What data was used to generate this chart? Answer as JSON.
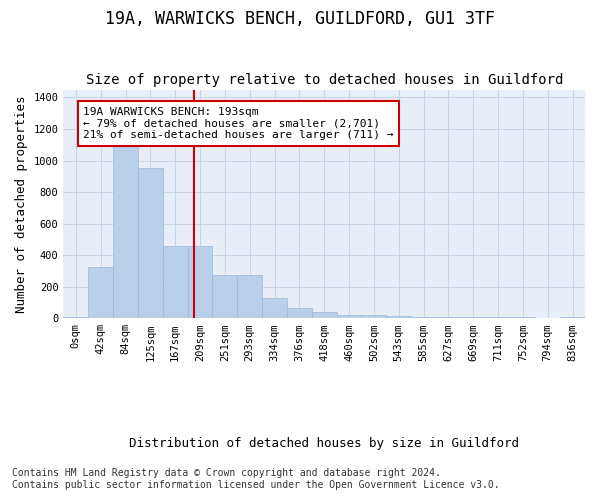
{
  "title": "19A, WARWICKS BENCH, GUILDFORD, GU1 3TF",
  "subtitle": "Size of property relative to detached houses in Guildford",
  "xlabel": "Distribution of detached houses by size in Guildford",
  "ylabel": "Number of detached properties",
  "footer_line1": "Contains HM Land Registry data © Crown copyright and database right 2024.",
  "footer_line2": "Contains public sector information licensed under the Open Government Licence v3.0.",
  "bar_labels": [
    "0sqm",
    "42sqm",
    "84sqm",
    "125sqm",
    "167sqm",
    "209sqm",
    "251sqm",
    "293sqm",
    "334sqm",
    "376sqm",
    "418sqm",
    "460sqm",
    "502sqm",
    "543sqm",
    "585sqm",
    "627sqm",
    "669sqm",
    "711sqm",
    "752sqm",
    "794sqm",
    "836sqm"
  ],
  "bar_values": [
    5,
    325,
    1120,
    950,
    460,
    460,
    275,
    275,
    130,
    65,
    40,
    20,
    20,
    15,
    10,
    10,
    8,
    5,
    8,
    0,
    5
  ],
  "bar_color": "#b8d0ea",
  "bar_edge_color": "#9ab8d8",
  "vline_x": 4.75,
  "vline_color": "#cc0000",
  "annotation_text": "19A WARWICKS BENCH: 193sqm\n← 79% of detached houses are smaller (2,701)\n21% of semi-detached houses are larger (711) →",
  "annotation_box_color": "#ffffff",
  "annotation_box_edge": "#cc0000",
  "ylim": [
    0,
    1450
  ],
  "yticks": [
    0,
    200,
    400,
    600,
    800,
    1000,
    1200,
    1400
  ],
  "grid_color": "#c8d4e8",
  "plot_bg_color": "#e8eef8",
  "title_fontsize": 12,
  "subtitle_fontsize": 10,
  "tick_fontsize": 7.5,
  "ylabel_fontsize": 9,
  "xlabel_fontsize": 9,
  "annotation_fontsize": 8,
  "footer_fontsize": 7
}
